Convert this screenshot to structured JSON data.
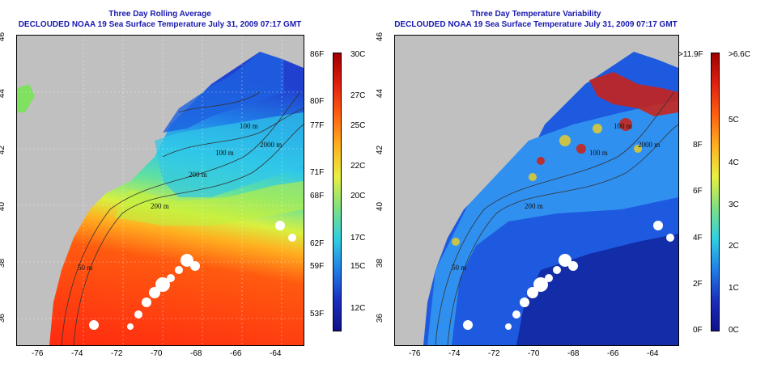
{
  "left_panel": {
    "title_line1": "Three Day Rolling Average",
    "title_line2": "DECLOUDED NOAA 19 Sea Surface Temperature July 31, 2009 07:17 GMT",
    "x_ticks": [
      "-76",
      "-74",
      "-72",
      "-70",
      "-68",
      "-66",
      "-64"
    ],
    "y_ticks": [
      "46",
      "44",
      "42",
      "40",
      "38",
      "36"
    ],
    "contour_labels": [
      "100 m",
      "100 m",
      "200 m",
      "2000 m",
      "200 m",
      "50 m",
      "200 m"
    ],
    "colorbar_f_labels": [
      "86F",
      "80F",
      "77F",
      "71F",
      "68F",
      "62F",
      "59F",
      "53F"
    ],
    "colorbar_c_labels": [
      "30C",
      "27C",
      "25C",
      "22C",
      "20C",
      "17C",
      "15C",
      "12C"
    ]
  },
  "right_panel": {
    "title_line1": "Three Day Temperature Variability",
    "title_line2": "DECLOUDED NOAA 19 Sea Surface Temperature July 31, 2009 07:17 GMT",
    "x_ticks": [
      "-76",
      "-74",
      "-72",
      "-70",
      "-68",
      "-66",
      "-64"
    ],
    "y_ticks": [
      "46",
      "44",
      "42",
      "40",
      "38",
      "36"
    ],
    "contour_labels": [
      "100 m",
      "100 m",
      "2000 m",
      "200 m",
      "50 m"
    ],
    "colorbar_f_labels": [
      ">11.9F",
      "8F",
      "6F",
      "4F",
      "2F",
      "0F"
    ],
    "colorbar_c_labels": [
      ">6.6C",
      "5C",
      "4C",
      "3C",
      "2C",
      "1C",
      "0C"
    ]
  },
  "colors": {
    "land": "#c0c0c0",
    "title": "#1a1ab0"
  }
}
